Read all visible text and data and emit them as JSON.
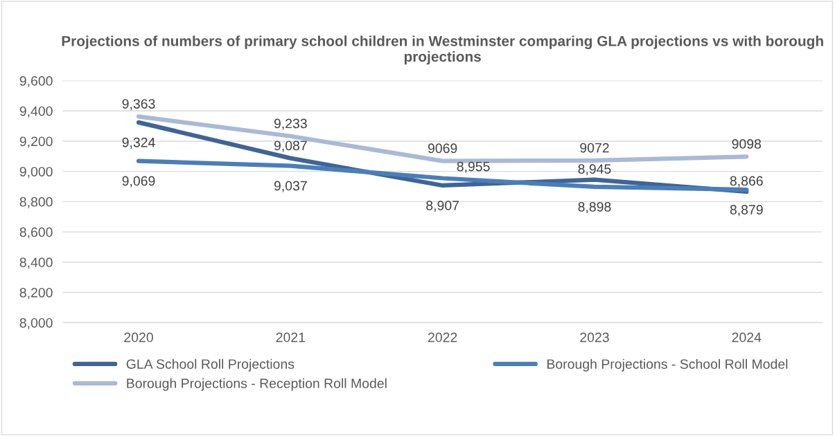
{
  "chart_data": {
    "type": "line",
    "title": "Projections of numbers of primary school children in Westminster comparing GLA projections vs with borough projections",
    "categories": [
      "2020",
      "2021",
      "2022",
      "2023",
      "2024"
    ],
    "series": [
      {
        "name": "GLA School Roll Projections",
        "color": "#3f6497",
        "values": [
          9324,
          9087,
          8907,
          8945,
          8866
        ],
        "value_labels": [
          "9,324",
          "9,087",
          "8,907",
          "8,945",
          "8,866"
        ]
      },
      {
        "name": "Borough Projections - School Roll Model",
        "color": "#4a7ebb",
        "values": [
          9069,
          9037,
          8955,
          8898,
          8879
        ],
        "value_labels": [
          "9,069",
          "9,037",
          "8,955",
          "8,898",
          "8,879"
        ]
      },
      {
        "name": "Borough Projections - Reception Roll Model",
        "color": "#a9b9d8",
        "values": [
          9363,
          9233,
          9069,
          9072,
          9098
        ],
        "value_labels": [
          "9,363",
          "9,233",
          "9069",
          "9072",
          "9098"
        ]
      }
    ],
    "ylim": [
      8000,
      9600
    ],
    "yticks": [
      {
        "value": 8000,
        "label": "8,000"
      },
      {
        "value": 8200,
        "label": "8,200"
      },
      {
        "value": 8400,
        "label": "8,400"
      },
      {
        "value": 8600,
        "label": "8,600"
      },
      {
        "value": 8800,
        "label": "8,800"
      },
      {
        "value": 9000,
        "label": "9,000"
      },
      {
        "value": 9200,
        "label": "9,200"
      },
      {
        "value": 9400,
        "label": "9,400"
      },
      {
        "value": 9600,
        "label": "9,600"
      }
    ],
    "grid": "y",
    "legend": "bottom",
    "marker": "none",
    "line_style": "solid"
  }
}
